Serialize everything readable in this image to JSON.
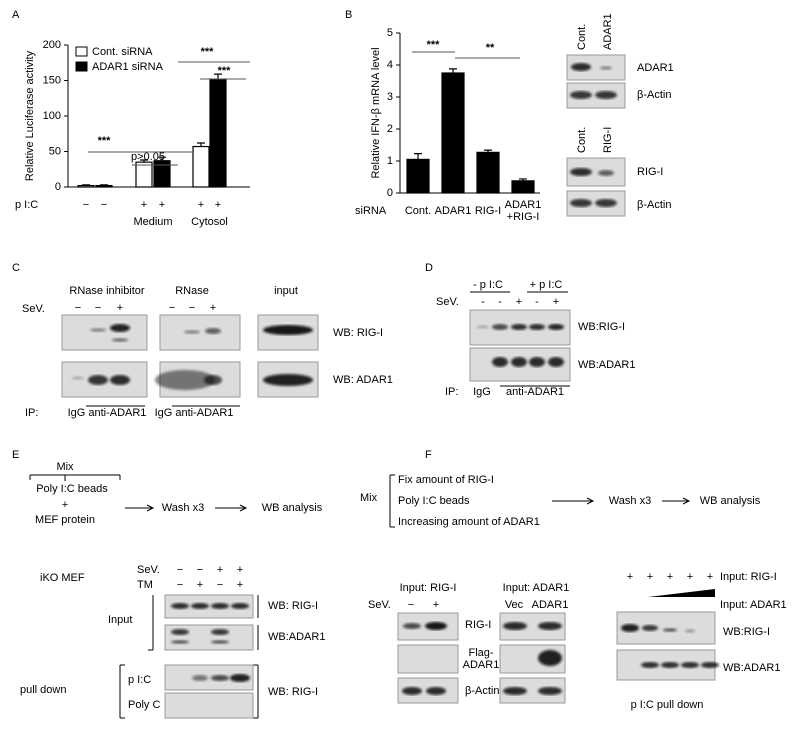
{
  "panel_labels": [
    "A",
    "B",
    "C",
    "D",
    "E",
    "F"
  ],
  "chart_data": [
    {
      "type": "bar",
      "y_label": "Relative Luciferase activity",
      "categories": [
        null,
        "Medium",
        "Cytosol"
      ],
      "series": [
        {
          "name": "Cont. siRNA",
          "color": "#ffffff",
          "values": [
            2,
            35,
            57
          ],
          "errors": [
            1,
            3,
            5
          ]
        },
        {
          "name": "ADAR1 siRNA",
          "color": "#000000",
          "values": [
            2,
            37,
            152
          ],
          "errors": [
            1,
            5,
            7
          ]
        }
      ],
      "ylim": [
        0,
        200
      ],
      "yticks": [
        0,
        50,
        100,
        150,
        200
      ],
      "treatment_row": {
        "label": "p I:C",
        "signs": [
          [
            "−",
            "−"
          ],
          [
            "+",
            "+"
          ],
          [
            "+",
            "+"
          ]
        ]
      },
      "annotations": [
        "***",
        "p>0.05",
        "***",
        "***"
      ]
    },
    {
      "type": "bar",
      "y_label": "Relative IFN-β mRNA level",
      "x_label": "siRNA",
      "categories": [
        "Cont.",
        "ADAR1",
        "RIG-I",
        "ADAR1\n+RIG-I"
      ],
      "values": [
        1.05,
        3.75,
        1.27,
        0.38
      ],
      "errors": [
        0.18,
        0.13,
        0.07,
        0.06
      ],
      "color": "#000000",
      "ylim": [
        0,
        5
      ],
      "yticks": [
        0,
        1,
        2,
        3,
        4,
        5
      ],
      "annotations": [
        "***",
        "**"
      ]
    }
  ],
  "panel_b_blots": {
    "lanes_1": [
      "Cont.",
      "ADAR1"
    ],
    "rows_1": [
      "ADAR1",
      "β-Actin"
    ],
    "lanes_2": [
      "Cont.",
      "RIG-I"
    ],
    "rows_2": [
      "RIG-I",
      "β-Actin"
    ]
  },
  "panel_c": {
    "headers": [
      "RNase inhibitor",
      "RNase",
      "input"
    ],
    "sev": "SeV.",
    "signs": [
      [
        "−",
        "−",
        "+"
      ],
      [
        "−",
        "−",
        "+"
      ]
    ],
    "rows": [
      "WB: RIG-I",
      "WB: ADAR1"
    ],
    "ip": "IP:",
    "ip_lanes": [
      "IgG anti-ADAR1",
      "IgG anti-ADAR1"
    ]
  },
  "panel_d": {
    "headers": [
      "- p I:C",
      "+ p I:C"
    ],
    "sev": "SeV.",
    "signs": [
      "-",
      "-",
      "+",
      "-",
      "+"
    ],
    "rows": [
      "WB:RIG-I",
      "WB:ADAR1"
    ],
    "ip": "IP:",
    "ip_lanes": [
      "IgG",
      "anti-ADAR1"
    ]
  },
  "panel_e": {
    "scheme": {
      "mix": "Mix",
      "beads": "Poly I:C beads",
      "plus": "+",
      "protein": "MEF protein",
      "wash": "Wash x3",
      "analysis": "WB analysis"
    },
    "cells": "iKO MEF",
    "treatments": [
      {
        "name": "SeV.",
        "signs": [
          "−",
          "−",
          "+",
          "+"
        ]
      },
      {
        "name": "TM",
        "signs": [
          "−",
          "+",
          "−",
          "+"
        ]
      }
    ],
    "input": "Input",
    "input_rows": [
      "WB: RIG-I",
      "WB:ADAR1"
    ],
    "pull_down": "pull down",
    "pull_rows": [
      "p I:C",
      "Poly C"
    ],
    "pull_wb": "WB: RIG-I"
  },
  "panel_f": {
    "scheme": {
      "mix": "Mix",
      "items": [
        "Fix amount of RIG-I",
        "Poly I:C beads",
        "Increasing amount of ADAR1"
      ],
      "wash": "Wash x3",
      "analysis": "WB analysis"
    },
    "left": {
      "title": "Input: RIG-I",
      "sev": "SeV.",
      "signs": [
        "−",
        "+"
      ],
      "rows": [
        "RIG-I",
        "Flag-\nADAR1",
        "β-Actin"
      ]
    },
    "middle": {
      "title": "Input: ADAR1",
      "lanes": [
        "Vec",
        "ADAR1"
      ]
    },
    "right": {
      "signs": [
        "+",
        "+",
        "+",
        "+",
        "+"
      ],
      "inputs": [
        "Input: RIG-I",
        "Input: ADAR1"
      ],
      "rows": [
        "WB:RIG-I",
        "WB:ADAR1"
      ],
      "caption": "p I:C pull down"
    }
  }
}
